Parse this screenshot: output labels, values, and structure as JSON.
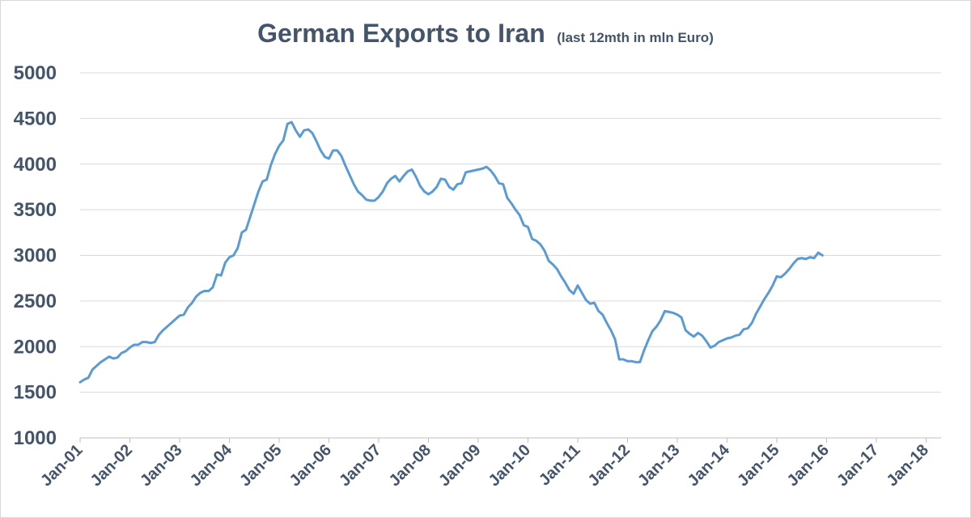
{
  "chart_data": {
    "type": "line",
    "title": "German Exports to Iran",
    "subtitle": "(last 12mth in mln Euro)",
    "xlabel": "",
    "ylabel": "",
    "ylim": [
      1000,
      5000
    ],
    "yticks": [
      1000,
      1500,
      2000,
      2500,
      3000,
      3500,
      4000,
      4500,
      5000
    ],
    "grid": true,
    "legend": "none",
    "x_start": "Jan-01",
    "x_tick_labels": [
      "Jan-01",
      "Jan-02",
      "Jan-03",
      "Jan-04",
      "Jan-05",
      "Jan-06",
      "Jan-07",
      "Jan-08",
      "Jan-09",
      "Jan-10",
      "Jan-11",
      "Jan-12",
      "Jan-13",
      "Jan-14",
      "Jan-15",
      "Jan-16",
      "Jan-17",
      "Jan-18"
    ],
    "line_color": "#5b9bd5",
    "series": [
      {
        "name": "German Exports to Iran (last 12mth, mln Euro)",
        "frequency": "monthly",
        "values": [
          1610,
          1640,
          1660,
          1750,
          1790,
          1830,
          1860,
          1890,
          1870,
          1880,
          1930,
          1950,
          1990,
          2020,
          2020,
          2050,
          2050,
          2040,
          2050,
          2130,
          2180,
          2220,
          2260,
          2300,
          2340,
          2350,
          2430,
          2480,
          2550,
          2590,
          2610,
          2610,
          2650,
          2790,
          2780,
          2920,
          2980,
          3000,
          3080,
          3250,
          3280,
          3420,
          3560,
          3700,
          3810,
          3830,
          3990,
          4110,
          4200,
          4260,
          4440,
          4460,
          4370,
          4300,
          4370,
          4380,
          4340,
          4250,
          4150,
          4080,
          4060,
          4150,
          4150,
          4090,
          3980,
          3880,
          3780,
          3700,
          3660,
          3610,
          3600,
          3600,
          3640,
          3700,
          3790,
          3840,
          3870,
          3810,
          3870,
          3920,
          3940,
          3860,
          3760,
          3700,
          3670,
          3700,
          3750,
          3840,
          3830,
          3750,
          3720,
          3780,
          3790,
          3910,
          3920,
          3930,
          3940,
          3950,
          3970,
          3930,
          3870,
          3790,
          3780,
          3630,
          3570,
          3500,
          3440,
          3330,
          3310,
          3180,
          3160,
          3120,
          3050,
          2940,
          2900,
          2850,
          2770,
          2700,
          2620,
          2580,
          2670,
          2590,
          2510,
          2470,
          2480,
          2390,
          2350,
          2260,
          2180,
          2080,
          1860,
          1860,
          1840,
          1840,
          1830,
          1830,
          1960,
          2070,
          2170,
          2220,
          2290,
          2390,
          2380,
          2370,
          2350,
          2320,
          2180,
          2140,
          2110,
          2150,
          2120,
          2060,
          1990,
          2010,
          2050,
          2070,
          2090,
          2100,
          2120,
          2130,
          2190,
          2200,
          2260,
          2360,
          2440,
          2520,
          2590,
          2670,
          2770,
          2760,
          2800,
          2850,
          2910,
          2960,
          2970,
          2960,
          2980,
          2970,
          3030,
          3000
        ]
      }
    ]
  }
}
